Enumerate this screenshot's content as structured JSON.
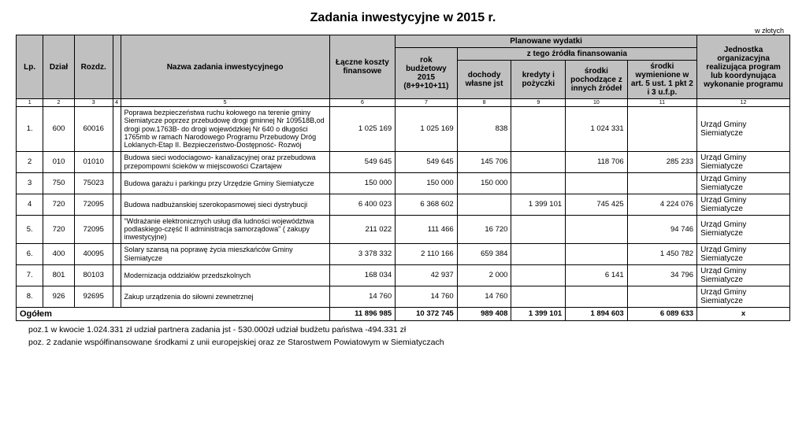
{
  "title": "Zadania inwestycyjne w 2015 r.",
  "currency_note": "w złotych",
  "headers": {
    "planowane": "Planowane wydatki",
    "ztego": "z tego źródła finansowania",
    "lp": "Lp.",
    "dzial": "Dział",
    "rozdz": "Rozdz.",
    "nazwa": "Nazwa zadania inwestycyjnego",
    "laczne": "Łączne koszty finansowe",
    "rok": "rok budżetowy 2015 (8+9+10+11)",
    "dochody": "dochody własne jst",
    "kredyty": "kredyty i pożyczki",
    "inne": "środki pochodzące z innych źródeł",
    "ufp": "środki wymienione w art. 5 ust. 1 pkt 2 i 3 u.f.p.",
    "jednostka": "Jednostka organizacyjna realizująca program lub koordynująca wykonanie programu"
  },
  "colnums": [
    "1",
    "2",
    "3",
    "4",
    "5",
    "6",
    "7",
    "8",
    "9",
    "10",
    "11",
    "12"
  ],
  "rows": [
    {
      "lp": "1.",
      "dzial": "600",
      "rozdz": "60016",
      "nazwa": "Poprawa  bezpieczeństwa  ruchu kołowego na terenie gminy Siemiatycze poprzez przebudowę drogi  gminnej  Nr 109518B,od drogi pow.1763B- do drogi wojewódzkiej Nr 640 o długości  1765mb w ramach Narodowego Programu Przebudowy Dróg Loklanych-Etap II. Bezpieczeństwo-Dostępność- Rozwój",
      "laczne": "1 025 169",
      "rok": "1 025 169",
      "dochody": "838",
      "kredyty": "",
      "inne": "1 024 331",
      "ufp": "",
      "jednostka": "Urząd Gminy Siemiatycze"
    },
    {
      "lp": "2",
      "dzial": "010",
      "rozdz": "01010",
      "nazwa": "Budowa sieci wodociagowo- kanalizacyjnej oraz przebudowa przepompowni ścieków w miejscowości Czartajew",
      "laczne": "549 645",
      "rok": "549 645",
      "dochody": "145 706",
      "kredyty": "",
      "inne": "118 706",
      "ufp": "285 233",
      "jednostka": "Urząd Gminy Siemiatycze"
    },
    {
      "lp": "3",
      "dzial": "750",
      "rozdz": "75023",
      "nazwa": "Budowa garażu  i parkingu przy Urzędzie Gminy Siemiatycze",
      "laczne": "150 000",
      "rok": "150 000",
      "dochody": "150 000",
      "kredyty": "",
      "inne": "",
      "ufp": "",
      "jednostka": "Urząd Gminy Siemiatycze"
    },
    {
      "lp": "4",
      "dzial": "720",
      "rozdz": "72095",
      "nazwa": "Budowa nadbużanskiej  szerokopasmowej sieci dystrybucji",
      "laczne": "6 400 023",
      "rok": "6 368 602",
      "dochody": "",
      "kredyty": "1 399 101",
      "inne": "745 425",
      "ufp": "4 224 076",
      "jednostka": "Urząd Gminy Siemiatycze"
    },
    {
      "lp": "5.",
      "dzial": "720",
      "rozdz": "72095",
      "nazwa": "\"Wdrażanie elektronicznych usług dla ludności województwa podlaskiego-część II administracja samorządowa\"  ( zakupy inwestycyjne)",
      "laczne": "211 022",
      "rok": "111 466",
      "dochody": "16 720",
      "kredyty": "",
      "inne": "",
      "ufp": "94 746",
      "jednostka": "Urząd Gminy Siemiatycze"
    },
    {
      "lp": "6.",
      "dzial": "400",
      "rozdz": "40095",
      "nazwa": "Solary szansą na poprawę życia mieszkańców Gminy Siemiatycze",
      "laczne": "3 378 332",
      "rok": "2 110 166",
      "dochody": "659 384",
      "kredyty": "",
      "inne": "",
      "ufp": "1 450 782",
      "jednostka": "Urząd Gminy Siemiatycze"
    },
    {
      "lp": "7.",
      "dzial": "801",
      "rozdz": "80103",
      "nazwa": "Modernizacja oddziałów przedszkolnych",
      "laczne": "168 034",
      "rok": "42 937",
      "dochody": "2 000",
      "kredyty": "",
      "inne": "6 141",
      "ufp": "34 796",
      "jednostka": "Urząd Gminy Siemiatycze"
    },
    {
      "lp": "8.",
      "dzial": "926",
      "rozdz": "92695",
      "nazwa": "Zakup urządzenia do siłowni zewnetrznej",
      "laczne": "14 760",
      "rok": "14 760",
      "dochody": "14 760",
      "kredyty": "",
      "inne": "",
      "ufp": "",
      "jednostka": "Urząd Gminy Siemiatycze"
    }
  ],
  "total": {
    "label": "Ogółem",
    "laczne": "11 896 985",
    "rok": "10 372 745",
    "dochody": "989 408",
    "kredyty": "1 399 101",
    "inne": "1 894 603",
    "ufp": "6 089 633",
    "jednostka": "x"
  },
  "footnotes": [
    "poz.1 w kwocie 1.024.331  zł  udział partnera zadania jst -  530.000zł udział budżetu państwa  -494.331 zł",
    "poz. 2  zadanie  współfinansowane środkami z unii europejskiej oraz ze  Starostwem Powiatowym w Siemiatyczach"
  ]
}
